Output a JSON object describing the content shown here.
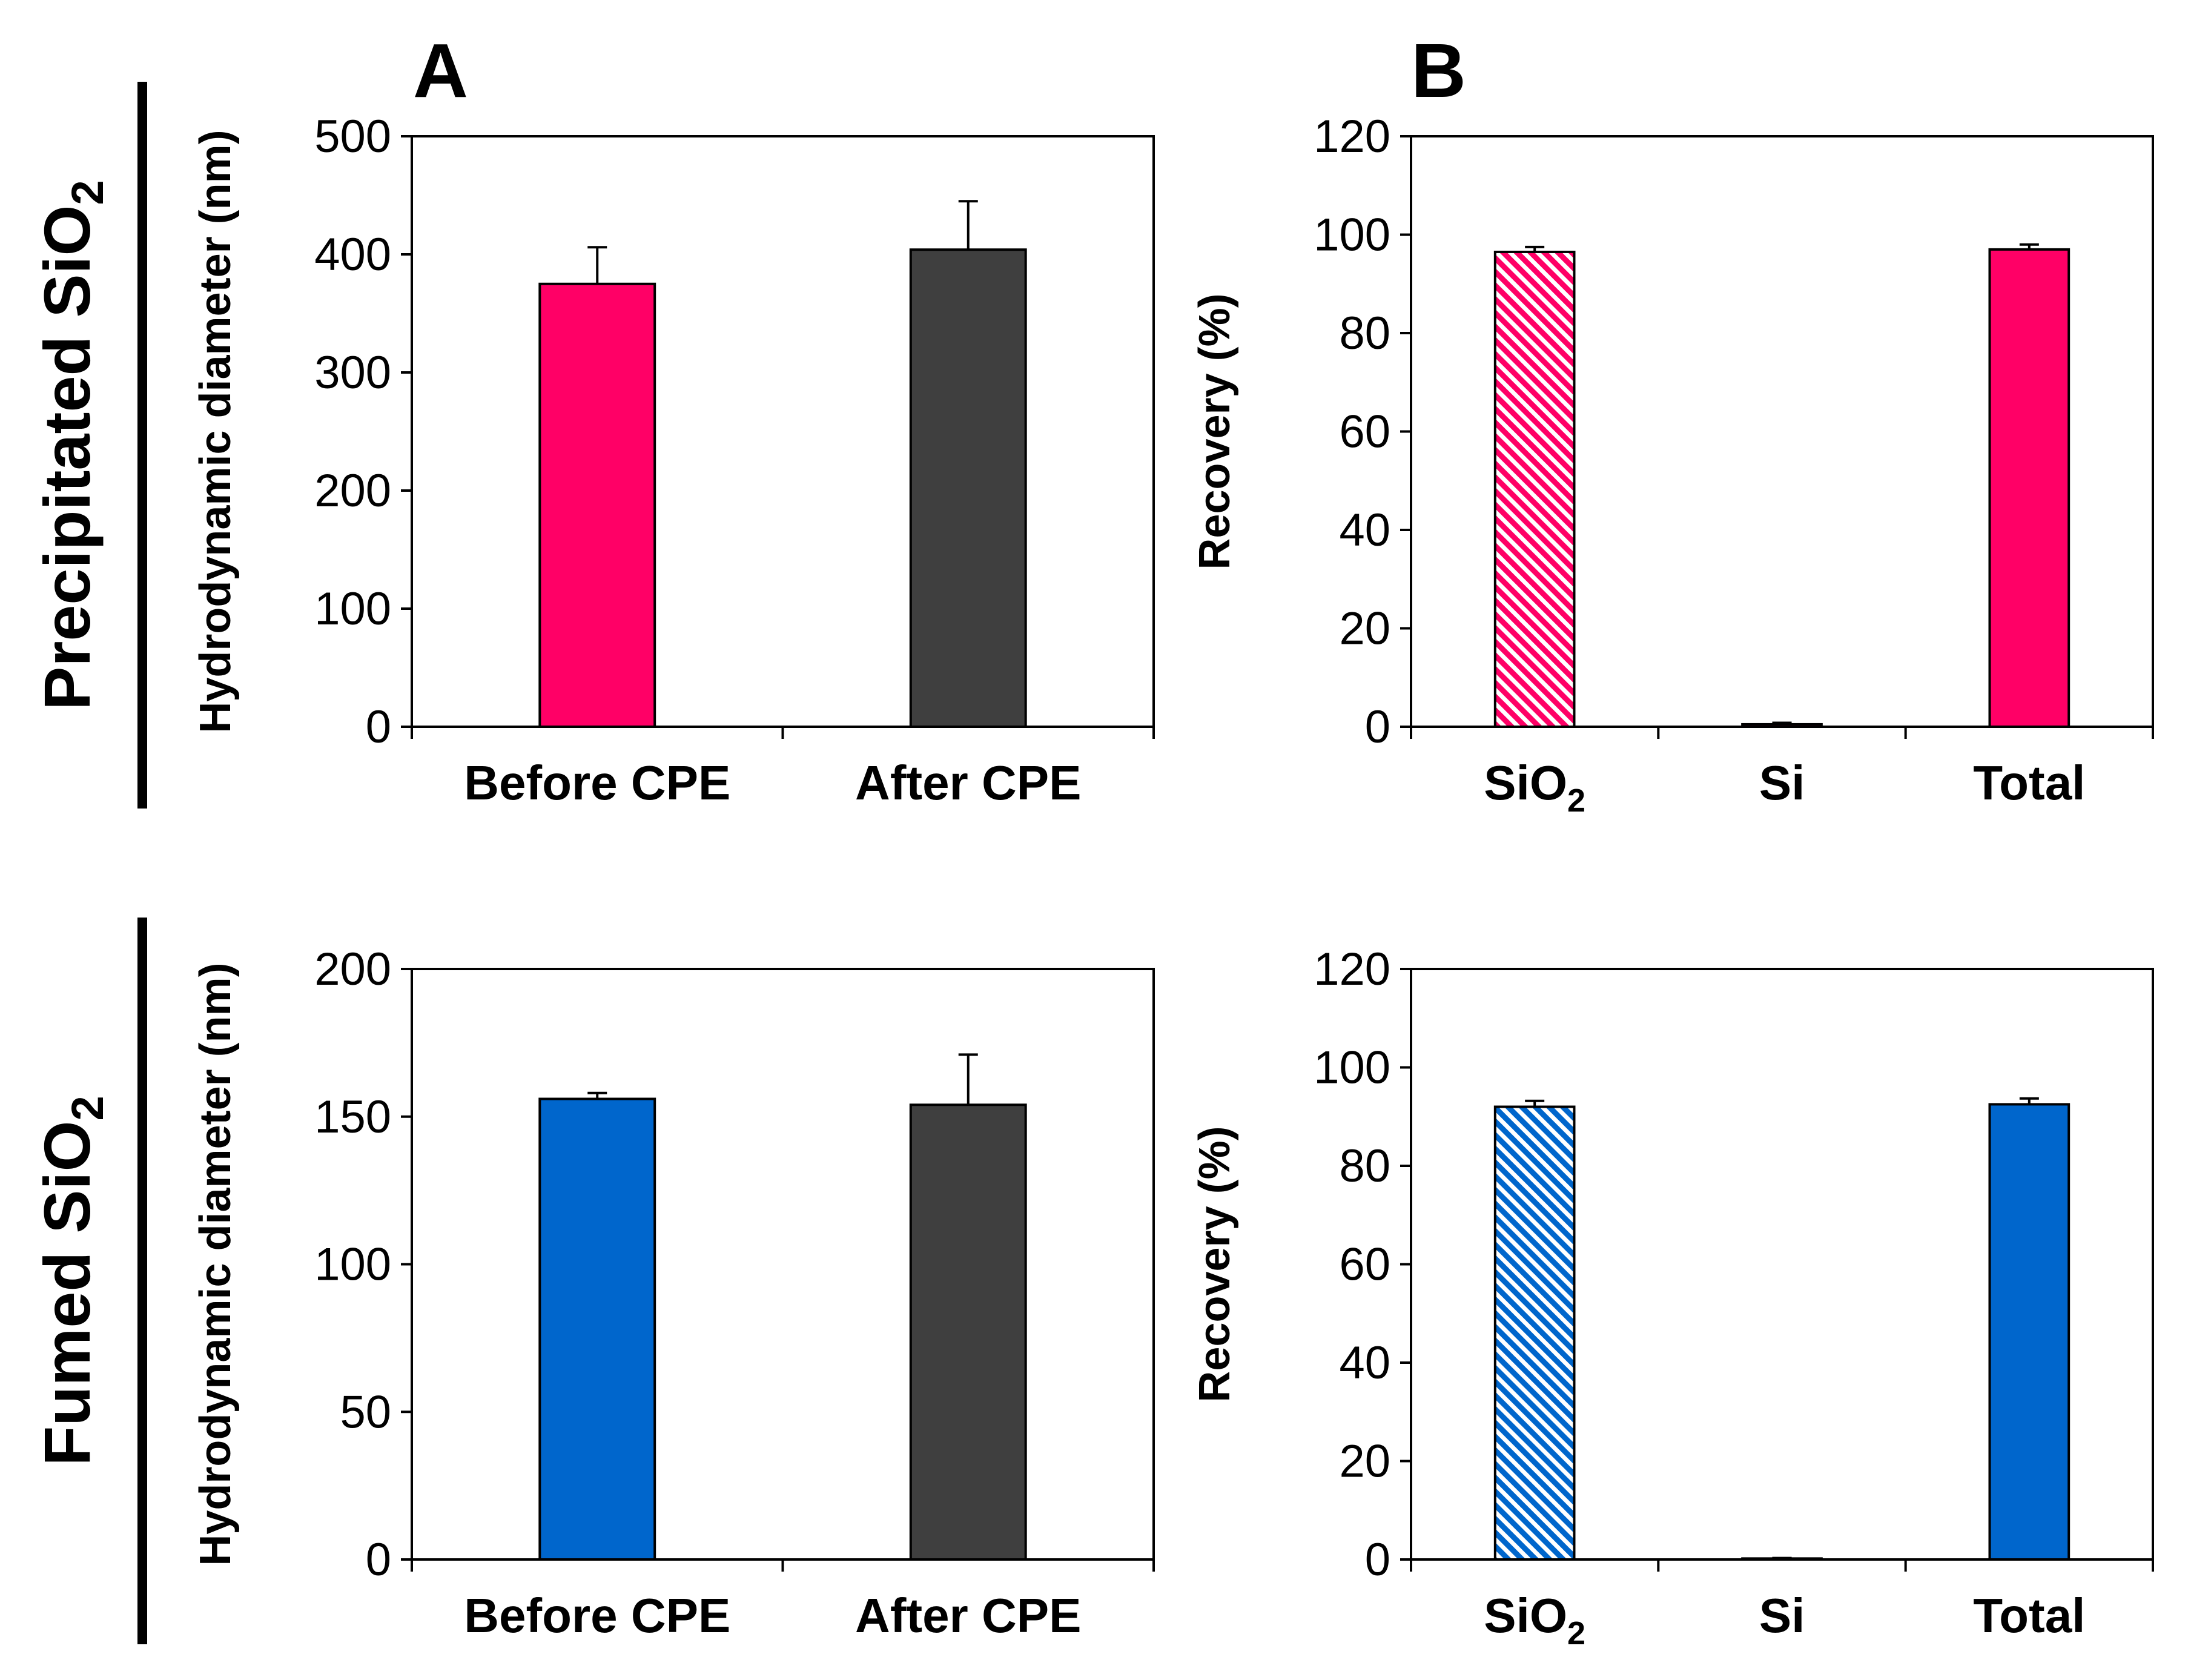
{
  "panels": {
    "a_label": "A",
    "b_label": "B"
  },
  "rows": [
    {
      "title_main": "Precipitated SiO",
      "title_sub": "2"
    },
    {
      "title_main": "Fumed SiO",
      "title_sub": "2"
    }
  ],
  "colors": {
    "precipitated": "#ff0066",
    "fumed": "#0066cc",
    "after": "#3f3f3f",
    "axis": "#000000"
  },
  "chart_data": [
    {
      "id": "top-left",
      "type": "bar",
      "row": 0,
      "panel": "A",
      "title": "",
      "ylabel": "Hydrodynamic diameter (nm)",
      "xlabel": "",
      "ylim": [
        0,
        500
      ],
      "yticks": [
        0,
        100,
        200,
        300,
        400,
        500
      ],
      "categories": [
        {
          "text": "Before CPE",
          "sub": ""
        },
        {
          "text": "After CPE",
          "sub": ""
        }
      ],
      "values": [
        375,
        404
      ],
      "errors": [
        31,
        41
      ],
      "bar_colors": [
        "#ff0066",
        "#3f3f3f"
      ],
      "patterns": [
        "solid",
        "solid"
      ]
    },
    {
      "id": "top-right",
      "type": "bar",
      "row": 0,
      "panel": "B",
      "title": "",
      "ylabel": "Recovery (%)",
      "xlabel": "",
      "ylim": [
        0,
        120
      ],
      "yticks": [
        0,
        20,
        40,
        60,
        80,
        100,
        120
      ],
      "categories": [
        {
          "text": "SiO",
          "sub": "2"
        },
        {
          "text": "Si",
          "sub": ""
        },
        {
          "text": "Total",
          "sub": ""
        }
      ],
      "values": [
        96.5,
        0.5,
        97
      ],
      "errors": [
        1,
        0.3,
        1
      ],
      "bar_colors": [
        "#ff0066",
        "#ff0066",
        "#ff0066"
      ],
      "patterns": [
        "hatch",
        "solid",
        "solid"
      ]
    },
    {
      "id": "bottom-left",
      "type": "bar",
      "row": 1,
      "panel": "A",
      "title": "",
      "ylabel": "Hydrodynamic diameter (nm)",
      "xlabel": "",
      "ylim": [
        0,
        200
      ],
      "yticks": [
        0,
        50,
        100,
        150,
        200
      ],
      "categories": [
        {
          "text": "Before CPE",
          "sub": ""
        },
        {
          "text": "After CPE",
          "sub": ""
        }
      ],
      "values": [
        156,
        154
      ],
      "errors": [
        2,
        17
      ],
      "bar_colors": [
        "#0066cc",
        "#3f3f3f"
      ],
      "patterns": [
        "solid",
        "solid"
      ]
    },
    {
      "id": "bottom-right",
      "type": "bar",
      "row": 1,
      "panel": "B",
      "title": "",
      "ylabel": "Recovery (%)",
      "xlabel": "",
      "ylim": [
        0,
        120
      ],
      "yticks": [
        0,
        20,
        40,
        60,
        80,
        100,
        120
      ],
      "categories": [
        {
          "text": "SiO",
          "sub": "2"
        },
        {
          "text": "Si",
          "sub": ""
        },
        {
          "text": "Total",
          "sub": ""
        }
      ],
      "values": [
        92,
        0.2,
        92.5
      ],
      "errors": [
        1.2,
        0.1,
        1.2
      ],
      "bar_colors": [
        "#0066cc",
        "#0066cc",
        "#0066cc"
      ],
      "patterns": [
        "hatch",
        "solid",
        "solid"
      ]
    }
  ]
}
